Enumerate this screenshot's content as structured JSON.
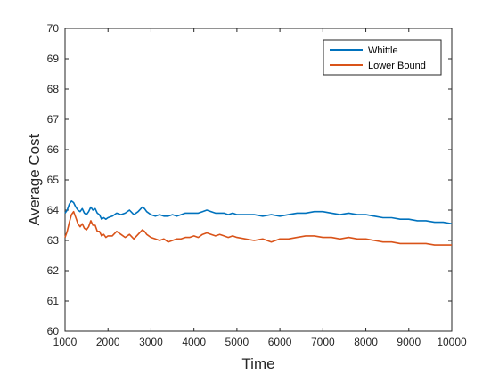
{
  "chart_data": {
    "type": "line",
    "xlabel": "Time",
    "ylabel": "Average Cost",
    "xlim": [
      1000,
      10000
    ],
    "ylim": [
      60,
      70
    ],
    "xticks": [
      1000,
      2000,
      3000,
      4000,
      5000,
      6000,
      7000,
      8000,
      9000,
      10000
    ],
    "yticks": [
      60,
      61,
      62,
      63,
      64,
      65,
      66,
      67,
      68,
      69,
      70
    ],
    "grid": false,
    "legend_position": "top-right",
    "series": [
      {
        "name": "Whittle",
        "color": "#0072BD",
        "points": [
          [
            1000,
            63.9
          ],
          [
            1050,
            64.0
          ],
          [
            1100,
            64.2
          ],
          [
            1150,
            64.3
          ],
          [
            1200,
            64.25
          ],
          [
            1250,
            64.1
          ],
          [
            1300,
            64.0
          ],
          [
            1350,
            63.95
          ],
          [
            1400,
            64.05
          ],
          [
            1450,
            63.9
          ],
          [
            1500,
            63.85
          ],
          [
            1550,
            63.95
          ],
          [
            1600,
            64.1
          ],
          [
            1650,
            64.0
          ],
          [
            1700,
            64.05
          ],
          [
            1750,
            63.9
          ],
          [
            1800,
            63.85
          ],
          [
            1850,
            63.7
          ],
          [
            1900,
            63.75
          ],
          [
            1950,
            63.7
          ],
          [
            2000,
            63.75
          ],
          [
            2100,
            63.8
          ],
          [
            2200,
            63.9
          ],
          [
            2300,
            63.85
          ],
          [
            2400,
            63.9
          ],
          [
            2500,
            64.0
          ],
          [
            2600,
            63.85
          ],
          [
            2700,
            63.95
          ],
          [
            2800,
            64.1
          ],
          [
            2850,
            64.05
          ],
          [
            2900,
            63.95
          ],
          [
            3000,
            63.85
          ],
          [
            3100,
            63.8
          ],
          [
            3200,
            63.85
          ],
          [
            3300,
            63.8
          ],
          [
            3400,
            63.8
          ],
          [
            3500,
            63.85
          ],
          [
            3600,
            63.8
          ],
          [
            3700,
            63.85
          ],
          [
            3800,
            63.9
          ],
          [
            3900,
            63.9
          ],
          [
            4000,
            63.9
          ],
          [
            4100,
            63.9
          ],
          [
            4200,
            63.95
          ],
          [
            4300,
            64.0
          ],
          [
            4400,
            63.95
          ],
          [
            4500,
            63.9
          ],
          [
            4600,
            63.9
          ],
          [
            4700,
            63.9
          ],
          [
            4800,
            63.85
          ],
          [
            4900,
            63.9
          ],
          [
            5000,
            63.85
          ],
          [
            5200,
            63.85
          ],
          [
            5400,
            63.85
          ],
          [
            5600,
            63.8
          ],
          [
            5800,
            63.85
          ],
          [
            6000,
            63.8
          ],
          [
            6200,
            63.85
          ],
          [
            6400,
            63.9
          ],
          [
            6600,
            63.9
          ],
          [
            6800,
            63.95
          ],
          [
            7000,
            63.95
          ],
          [
            7200,
            63.9
          ],
          [
            7400,
            63.85
          ],
          [
            7600,
            63.9
          ],
          [
            7800,
            63.85
          ],
          [
            8000,
            63.85
          ],
          [
            8200,
            63.8
          ],
          [
            8400,
            63.75
          ],
          [
            8600,
            63.75
          ],
          [
            8800,
            63.7
          ],
          [
            9000,
            63.7
          ],
          [
            9200,
            63.65
          ],
          [
            9400,
            63.65
          ],
          [
            9600,
            63.6
          ],
          [
            9800,
            63.6
          ],
          [
            10000,
            63.55
          ]
        ]
      },
      {
        "name": "Lower Bound",
        "color": "#D95319",
        "points": [
          [
            1000,
            63.1
          ],
          [
            1050,
            63.3
          ],
          [
            1100,
            63.6
          ],
          [
            1150,
            63.85
          ],
          [
            1200,
            63.95
          ],
          [
            1250,
            63.75
          ],
          [
            1300,
            63.55
          ],
          [
            1350,
            63.45
          ],
          [
            1400,
            63.55
          ],
          [
            1450,
            63.4
          ],
          [
            1500,
            63.35
          ],
          [
            1550,
            63.45
          ],
          [
            1600,
            63.65
          ],
          [
            1650,
            63.5
          ],
          [
            1700,
            63.5
          ],
          [
            1750,
            63.3
          ],
          [
            1800,
            63.3
          ],
          [
            1850,
            63.15
          ],
          [
            1900,
            63.2
          ],
          [
            1950,
            63.1
          ],
          [
            2000,
            63.15
          ],
          [
            2100,
            63.15
          ],
          [
            2200,
            63.3
          ],
          [
            2300,
            63.2
          ],
          [
            2400,
            63.1
          ],
          [
            2500,
            63.2
          ],
          [
            2600,
            63.05
          ],
          [
            2700,
            63.2
          ],
          [
            2800,
            63.35
          ],
          [
            2850,
            63.3
          ],
          [
            2900,
            63.2
          ],
          [
            3000,
            63.1
          ],
          [
            3100,
            63.05
          ],
          [
            3200,
            63.0
          ],
          [
            3300,
            63.05
          ],
          [
            3400,
            62.95
          ],
          [
            3500,
            63.0
          ],
          [
            3600,
            63.05
          ],
          [
            3700,
            63.05
          ],
          [
            3800,
            63.1
          ],
          [
            3900,
            63.1
          ],
          [
            4000,
            63.15
          ],
          [
            4100,
            63.1
          ],
          [
            4200,
            63.2
          ],
          [
            4300,
            63.25
          ],
          [
            4400,
            63.2
          ],
          [
            4500,
            63.15
          ],
          [
            4600,
            63.2
          ],
          [
            4700,
            63.15
          ],
          [
            4800,
            63.1
          ],
          [
            4900,
            63.15
          ],
          [
            5000,
            63.1
          ],
          [
            5200,
            63.05
          ],
          [
            5400,
            63.0
          ],
          [
            5600,
            63.05
          ],
          [
            5800,
            62.95
          ],
          [
            6000,
            63.05
          ],
          [
            6200,
            63.05
          ],
          [
            6400,
            63.1
          ],
          [
            6600,
            63.15
          ],
          [
            6800,
            63.15
          ],
          [
            7000,
            63.1
          ],
          [
            7200,
            63.1
          ],
          [
            7400,
            63.05
          ],
          [
            7600,
            63.1
          ],
          [
            7800,
            63.05
          ],
          [
            8000,
            63.05
          ],
          [
            8200,
            63.0
          ],
          [
            8400,
            62.95
          ],
          [
            8600,
            62.95
          ],
          [
            8800,
            62.9
          ],
          [
            9000,
            62.9
          ],
          [
            9200,
            62.9
          ],
          [
            9400,
            62.9
          ],
          [
            9600,
            62.85
          ],
          [
            9800,
            62.85
          ],
          [
            10000,
            62.85
          ]
        ]
      }
    ]
  }
}
